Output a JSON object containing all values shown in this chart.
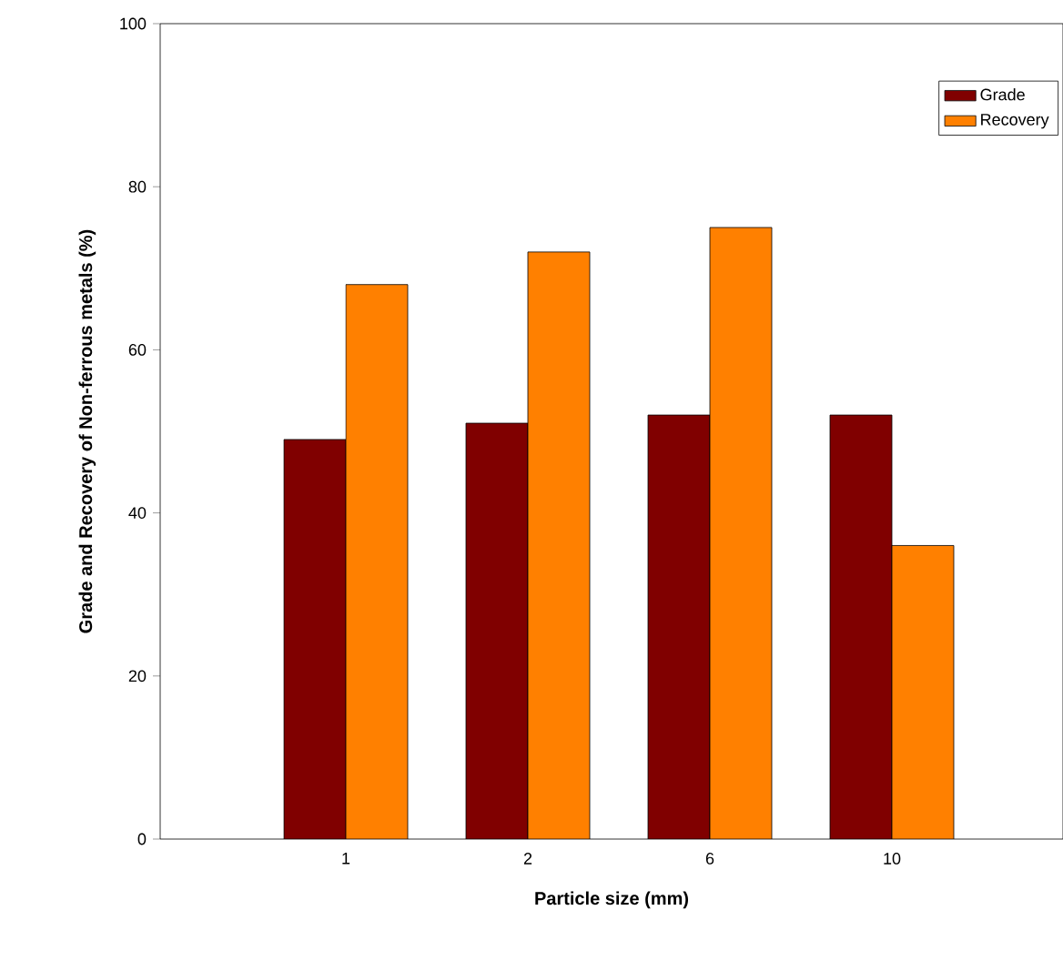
{
  "chart_data": {
    "type": "bar",
    "xlabel": "Particle size (mm)",
    "ylabel": "Grade and Recovery of Non-ferrous metals (%)",
    "categories": [
      "1",
      "2",
      "6",
      "10"
    ],
    "series": [
      {
        "name": "Grade",
        "color": "#800000",
        "values": [
          49,
          51,
          52,
          52
        ]
      },
      {
        "name": "Recovery",
        "color": "#ff8000",
        "values": [
          68,
          72,
          75,
          36
        ]
      }
    ],
    "ylim": [
      0,
      100
    ],
    "yticks": [
      0,
      20,
      40,
      60,
      80,
      100
    ],
    "legend": "top right"
  }
}
